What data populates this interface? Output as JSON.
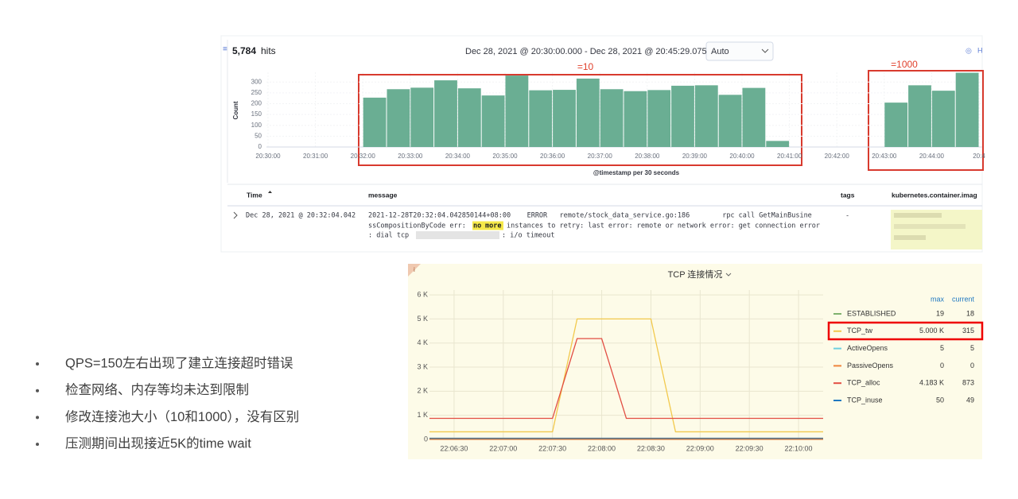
{
  "kibana": {
    "hits": "5,784",
    "hits_label": "hits",
    "time_range": "Dec 28, 2021 @ 20:30:00.000 - Dec 28, 2021 @ 20:45:29.075",
    "interval": "Auto",
    "corner_label": "H",
    "chart": {
      "type": "bar",
      "y_label": "Count",
      "x_label": "@timestamp per 30 seconds",
      "ylim": [
        0,
        345
      ],
      "yticks": [
        0,
        50,
        100,
        150,
        200,
        250,
        300
      ],
      "xticks": [
        "20:30:00",
        "20:31:00",
        "20:32:00",
        "20:33:00",
        "20:34:00",
        "20:35:00",
        "20:36:00",
        "20:37:00",
        "20:38:00",
        "20:39:00",
        "20:40:00",
        "20:41:00",
        "20:42:00",
        "20:43:00",
        "20:44:00",
        "20:4"
      ],
      "values": [
        0,
        0,
        0,
        0,
        228,
        267,
        274,
        308,
        271,
        238,
        330,
        262,
        264,
        316,
        267,
        258,
        263,
        283,
        285,
        241,
        273,
        28,
        0,
        0,
        0,
        0,
        205,
        285,
        260,
        343
      ],
      "color": "#6aae93",
      "annotations": [
        "=10",
        "=1000"
      ]
    },
    "table": {
      "columns": [
        "Time",
        "message",
        "tags",
        "kubernetes.container.imag"
      ],
      "row": {
        "time": "Dec 28, 2021 @ 20:32:04.042",
        "line1": "2021-12-28T20:32:04.042850144+08:00    ERROR   remote/stock_data_service.go:186        rpc call GetMainBusine",
        "line2": "ssCompositionByCode err:",
        "highlight": [
          "no",
          "more"
        ],
        "line2_rest": "instances to retry: last error: remote or network error: get connection error",
        "line3": ": dial tcp",
        "line3_rest": ": i/o timeout",
        "tags": "-"
      }
    }
  },
  "grafana": {
    "type": "line",
    "title": "TCP 连接情况",
    "ylim": [
      0,
      6200
    ],
    "yticks": [
      {
        "value": 0,
        "label": "0"
      },
      {
        "value": 1000,
        "label": "1 K"
      },
      {
        "value": 2000,
        "label": "2 K"
      },
      {
        "value": 3000,
        "label": "3 K"
      },
      {
        "value": 4000,
        "label": "4 K"
      },
      {
        "value": 5000,
        "label": "5 K"
      },
      {
        "value": 6000,
        "label": "6 K"
      }
    ],
    "xlim": [
      "22:06:15",
      "22:10:15"
    ],
    "xticks": [
      "22:06:30",
      "22:07:00",
      "22:07:30",
      "22:08:00",
      "22:08:30",
      "22:09:00",
      "22:09:30",
      "22:10:00"
    ],
    "legend_headers": [
      "max",
      "current"
    ],
    "series": [
      {
        "name": "ESTABLISHED",
        "color": "#7eb26d",
        "x": [
          "22:06:15",
          "22:10:15"
        ],
        "values": [
          19,
          18
        ],
        "max": 19,
        "current": 18
      },
      {
        "name": "TCP_tw",
        "color": "#f2c94c",
        "x": [
          "22:06:15",
          "22:07:30",
          "22:07:45",
          "22:08:30",
          "22:08:45",
          "22:10:15"
        ],
        "values": [
          315,
          315,
          5000,
          5000,
          315,
          315
        ],
        "max": {
          "value": 5000,
          "label": "5.000 K"
        },
        "current": 315
      },
      {
        "name": "ActiveOpens",
        "color": "#6ed0e0",
        "x": [
          "22:06:15",
          "22:10:15"
        ],
        "values": [
          5,
          5
        ],
        "max": 5,
        "current": 5
      },
      {
        "name": "PassiveOpens",
        "color": "#ef843c",
        "x": [
          "22:06:15",
          "22:10:15"
        ],
        "values": [
          0,
          0
        ],
        "max": 0,
        "current": 0
      },
      {
        "name": "TCP_alloc",
        "color": "#e24d42",
        "x": [
          "22:06:15",
          "22:07:30",
          "22:07:45",
          "22:08:00",
          "22:08:15",
          "22:10:15"
        ],
        "values": [
          873,
          873,
          4183,
          4183,
          873,
          873
        ],
        "max": {
          "value": 4183,
          "label": "4.183 K"
        },
        "current": 873
      },
      {
        "name": "TCP_inuse",
        "color": "#1f78c1",
        "x": [
          "22:06:15",
          "22:10:15"
        ],
        "values": [
          50,
          49
        ],
        "max": 50,
        "current": 49
      }
    ]
  },
  "bullets": [
    "QPS=150左右出现了建立连接超时错误",
    "检查网络、内存等均未达到限制",
    "修改连接池大小（10和1000），没有区别",
    "压测期间出现接近5K的time wait"
  ]
}
